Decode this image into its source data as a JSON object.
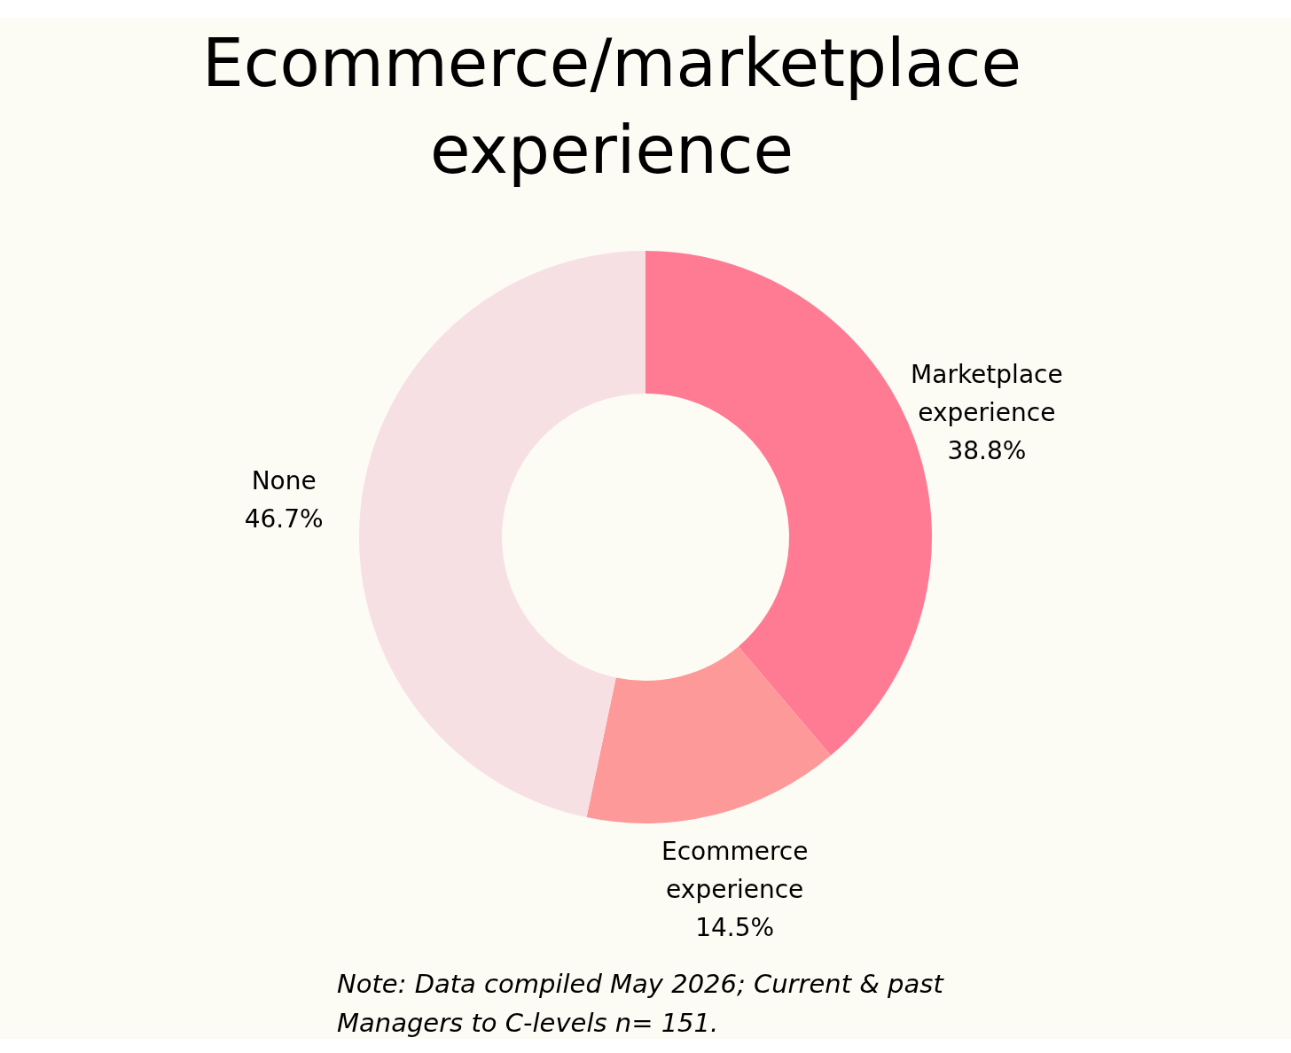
{
  "chart_data": {
    "type": "donut",
    "title": "Ecommerce/marketplace experience",
    "categories": [
      "Marketplace experience",
      "Ecommerce experience",
      "None"
    ],
    "values": [
      38.8,
      14.5,
      46.7
    ],
    "value_labels": [
      "38.8%",
      "14.5%",
      "46.7%"
    ],
    "colors": [
      "#ff7a93",
      "#fe9999",
      "#f7e0e4"
    ],
    "annotations": [
      "Note: Data compiled May 2026; Current & past Managers to C-levels n= 151."
    ]
  }
}
